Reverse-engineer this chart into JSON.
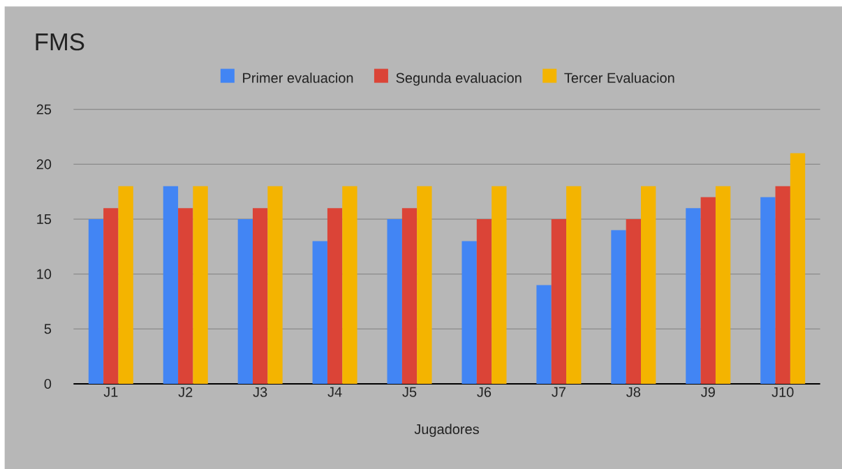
{
  "chart_data": {
    "type": "bar",
    "title": "FMS",
    "xlabel": "Jugadores",
    "categories": [
      "J1",
      "J2",
      "J3",
      "J4",
      "J5",
      "J6",
      "J7",
      "J8",
      "J9",
      "J10"
    ],
    "series": [
      {
        "name": "Primer evaluacion",
        "color": "#4285f4",
        "values": [
          15,
          18,
          15,
          13,
          15,
          13,
          9,
          14,
          16,
          17
        ]
      },
      {
        "name": "Segunda evaluacion",
        "color": "#db4437",
        "values": [
          16,
          16,
          16,
          16,
          16,
          15,
          15,
          15,
          17,
          18
        ]
      },
      {
        "name": "Tercer Evaluacion",
        "color": "#f4b400",
        "values": [
          18,
          18,
          18,
          18,
          18,
          18,
          18,
          18,
          18,
          21
        ]
      }
    ],
    "ylim": [
      0,
      25
    ],
    "yticks": [
      0,
      5,
      10,
      15,
      20,
      25
    ],
    "grid": "y",
    "legend": "top"
  }
}
